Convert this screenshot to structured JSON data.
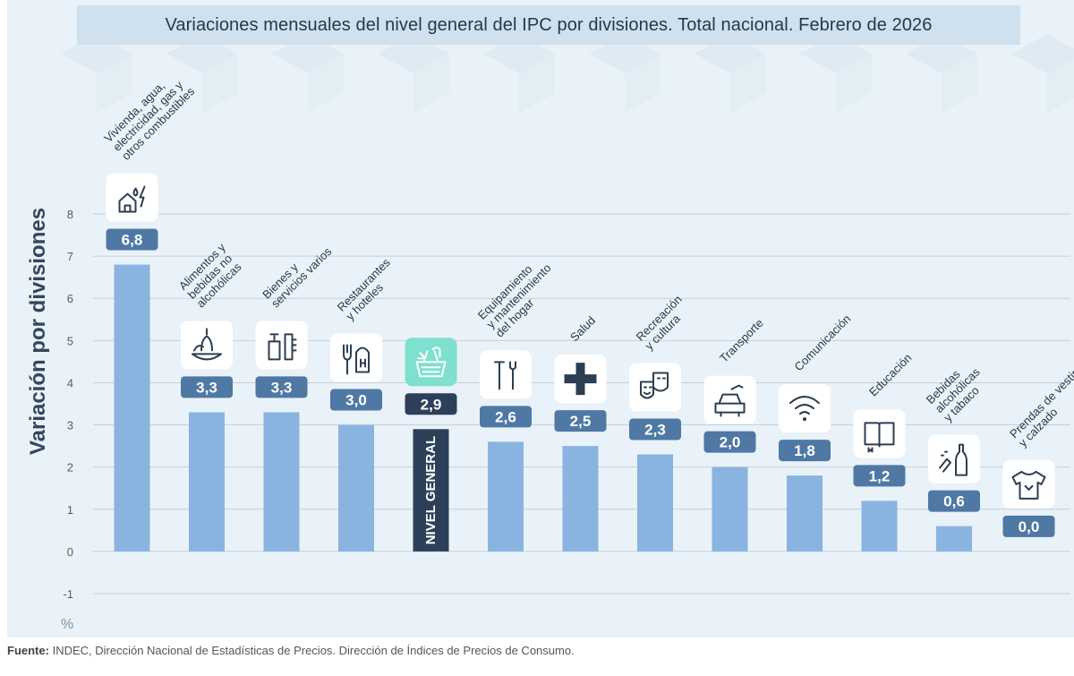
{
  "title": "Variaciones mensuales del nivel general del IPC por divisiones. Total nacional. Febrero de 2026",
  "footer": {
    "label": "Fuente:",
    "text": "INDEC, Dirección Nacional de Estadísticas de Precios. Dirección de Índices de Precios de Consumo."
  },
  "colors": {
    "bar": "#8ab4e0",
    "bar_highlight": "#2c4159",
    "badge": "#4f79a4",
    "badge_highlight": "#2c4159",
    "icon_highlight": "#7ee0cf",
    "grid": "#c7d0d9"
  },
  "chart_data": {
    "type": "bar",
    "title": "Variaciones mensuales del nivel general del IPC por divisiones. Total nacional. Febrero de 2026",
    "ylabel": "Variación por divisiones",
    "yunit": "%",
    "ylim": [
      -1,
      8
    ],
    "yticks": [
      -1,
      0,
      1,
      2,
      3,
      4,
      5,
      6,
      7,
      8
    ],
    "grid": true,
    "highlight_label": "NIVEL GENERAL",
    "categories": [
      {
        "label": [
          "Vivienda, agua,",
          "electricidad, gas y",
          "otros combustibles"
        ],
        "value": 6.8,
        "display": "6,8",
        "icon": "house-energy-icon"
      },
      {
        "label": [
          "Alimentos y",
          "bebidas no",
          "alcohólicas"
        ],
        "value": 3.3,
        "display": "3,3",
        "icon": "food-icon"
      },
      {
        "label": [
          "Bienes y",
          "servicios varios"
        ],
        "value": 3.3,
        "display": "3,3",
        "icon": "toiletries-icon"
      },
      {
        "label": [
          "Restaurantes",
          "y hoteles"
        ],
        "value": 3.0,
        "display": "3,0",
        "icon": "restaurant-hotel-icon"
      },
      {
        "label": [],
        "value": 2.9,
        "display": "2,9",
        "icon": "basket-icon",
        "highlight": true
      },
      {
        "label": [
          "Equipamiento",
          "y mantenimiento",
          "del hogar"
        ],
        "value": 2.6,
        "display": "2,6",
        "icon": "tools-icon"
      },
      {
        "label": [
          "Salud"
        ],
        "value": 2.5,
        "display": "2,5",
        "icon": "health-cross-icon"
      },
      {
        "label": [
          "Recreación",
          "y cultura"
        ],
        "value": 2.3,
        "display": "2,3",
        "icon": "theater-masks-icon"
      },
      {
        "label": [
          "Transporte"
        ],
        "value": 2.0,
        "display": "2,0",
        "icon": "car-icon"
      },
      {
        "label": [
          "Comunicación"
        ],
        "value": 1.8,
        "display": "1,8",
        "icon": "wifi-icon"
      },
      {
        "label": [
          "Educación"
        ],
        "value": 1.2,
        "display": "1,2",
        "icon": "book-icon"
      },
      {
        "label": [
          "Bebidas",
          "alcohólicas",
          "y tabaco"
        ],
        "value": 0.6,
        "display": "0,6",
        "icon": "bottle-icon"
      },
      {
        "label": [
          "Prendas de vestir",
          "y calzado"
        ],
        "value": 0.0,
        "display": "0,0",
        "icon": "shirt-icon"
      }
    ]
  }
}
